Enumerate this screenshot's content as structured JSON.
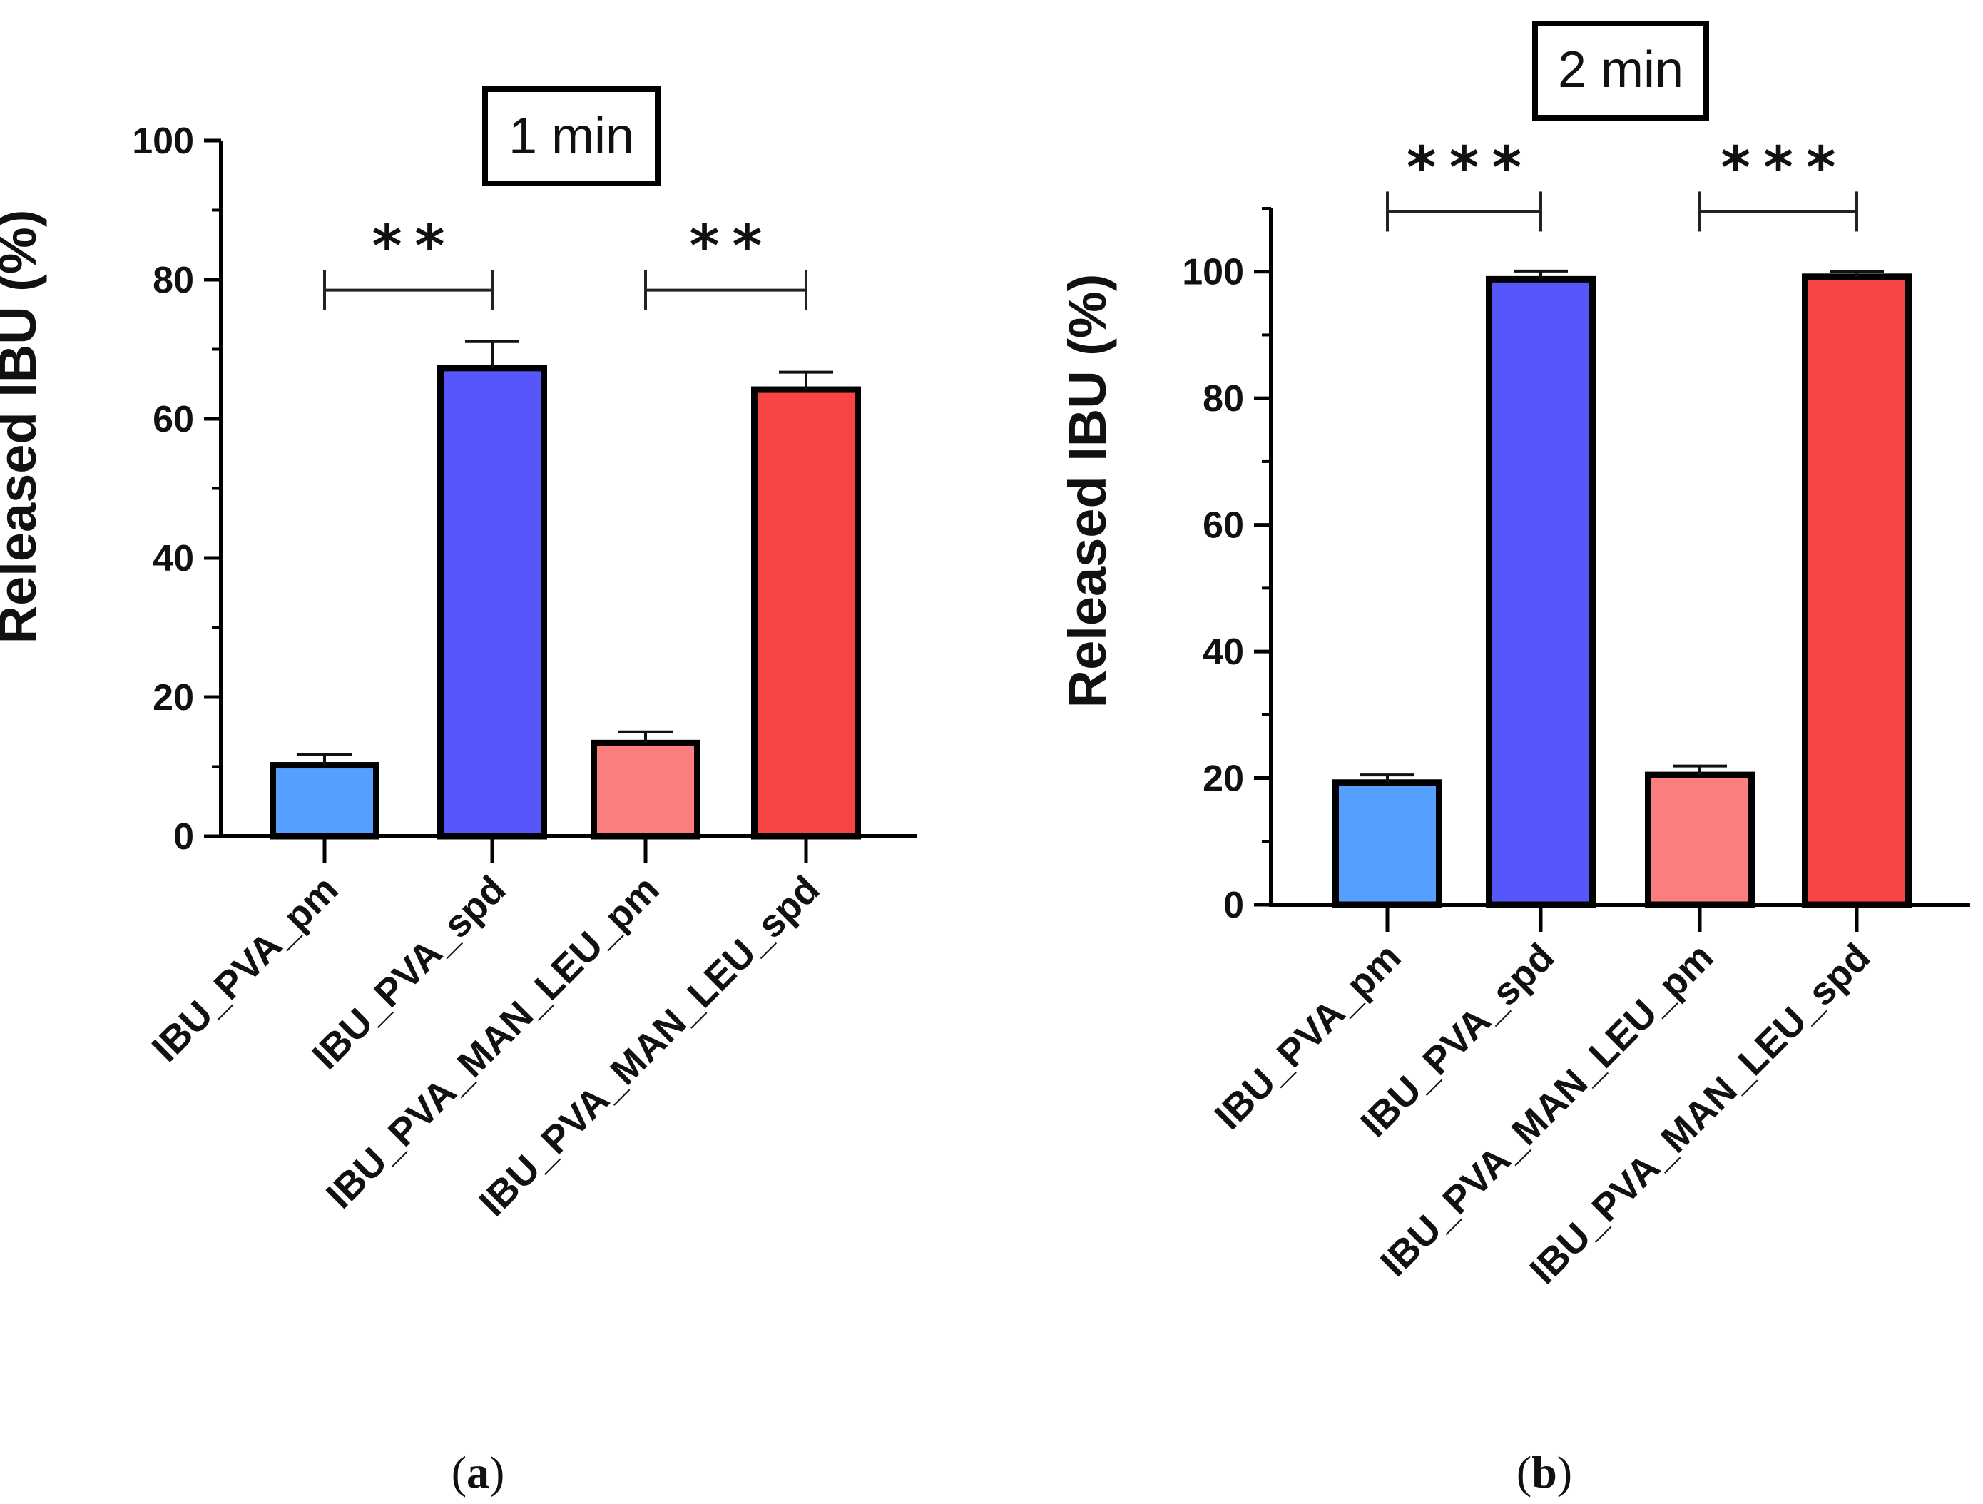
{
  "chart_data": [
    {
      "type": "bar",
      "title": "1 min",
      "caption_prefix": "(",
      "caption_letter": "a",
      "caption_suffix": ")",
      "ylabel": "Released IBU  (%)",
      "xlabel": "",
      "ylim": [
        0,
        100
      ],
      "yticks": [
        0,
        20,
        40,
        60,
        80,
        100
      ],
      "categories": [
        "IBU_PVA_pm",
        "IBU_PVA_spd",
        "IBU_PVA_MAN_LEU_pm",
        "IBU_PVA_MAN_LEU_spd"
      ],
      "values": [
        10.2,
        67.3,
        13.4,
        64.2
      ],
      "errors": [
        1.5,
        3.8,
        1.6,
        2.5
      ],
      "colors": [
        "#559ffe",
        "#5656fa",
        "#fc7f7f",
        "#f84444"
      ],
      "significance": [
        {
          "from": 0,
          "to": 1,
          "label": "**",
          "y": 78.5
        },
        {
          "from": 2,
          "to": 3,
          "label": "**",
          "y": 78.5
        }
      ],
      "grid": false
    },
    {
      "type": "bar",
      "title": "2 min",
      "caption_prefix": "(",
      "caption_letter": "b",
      "caption_suffix": ")",
      "ylabel": "Released IBU  (%)",
      "xlabel": "",
      "ylim": [
        0,
        110
      ],
      "yticks": [
        0,
        20,
        40,
        60,
        80,
        100
      ],
      "categories": [
        "IBU_PVA_pm",
        "IBU_PVA_spd",
        "IBU_PVA_MAN_LEU_pm",
        "IBU_PVA_MAN_LEU_spd"
      ],
      "values": [
        19.3,
        98.8,
        20.5,
        99.2
      ],
      "errors": [
        1.2,
        1.3,
        1.4,
        0.8
      ],
      "colors": [
        "#559ffe",
        "#5656fa",
        "#fc7f7f",
        "#f84444"
      ],
      "significance": [
        {
          "from": 0,
          "to": 1,
          "label": "***",
          "y": 109.5
        },
        {
          "from": 2,
          "to": 3,
          "label": "***",
          "y": 109.5
        }
      ],
      "grid": false
    }
  ]
}
